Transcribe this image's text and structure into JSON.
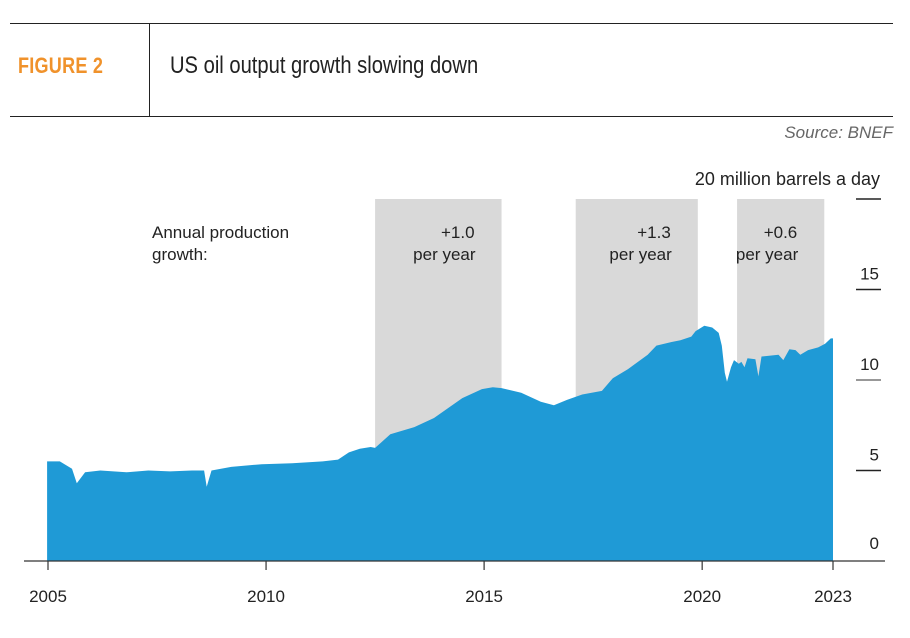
{
  "header": {
    "figure_label": "FIGURE 2",
    "title": "US oil output growth slowing down",
    "source": "Source: BNEF"
  },
  "colors": {
    "accent": "#f0922b",
    "area": "#1f9ad6",
    "band": "#d9d9d9",
    "text": "#222222"
  },
  "chart_data": {
    "type": "area",
    "title": "US oil output growth slowing down",
    "ylabel": "20 million barrels a day",
    "xlabel": "",
    "xlim": [
      2005,
      2023
    ],
    "ylim": [
      0,
      20
    ],
    "x_ticks": [
      "2005",
      "2010",
      "2015",
      "2020",
      "2023"
    ],
    "y_ticks": [
      "0",
      "5",
      "10",
      "15"
    ],
    "y_top_label": "20 million barrels a day",
    "grid": false,
    "annotation_title": "Annual production growth:",
    "bands": [
      {
        "start": 2012.5,
        "end": 2015.4,
        "line1": "+1.0",
        "line2": "per year",
        "growth": 1.0
      },
      {
        "start": 2017.1,
        "end": 2019.9,
        "line1": "+1.3",
        "line2": "per year",
        "growth": 1.3
      },
      {
        "start": 2020.8,
        "end": 2022.8,
        "line1": "+0.6",
        "line2": "per year",
        "growth": 0.6
      }
    ],
    "series": [
      {
        "name": "US oil output (million barrels a day)",
        "points": [
          [
            2004.98,
            5.5
          ],
          [
            2005.27,
            5.5
          ],
          [
            2005.55,
            5.1
          ],
          [
            2005.66,
            4.3
          ],
          [
            2005.85,
            4.9
          ],
          [
            2006.2,
            5.0
          ],
          [
            2006.8,
            4.9
          ],
          [
            2007.3,
            5.0
          ],
          [
            2007.8,
            4.95
          ],
          [
            2008.3,
            5.0
          ],
          [
            2008.58,
            5.0
          ],
          [
            2008.64,
            4.1
          ],
          [
            2008.75,
            5.0
          ],
          [
            2009.2,
            5.2
          ],
          [
            2009.9,
            5.35
          ],
          [
            2010.6,
            5.4
          ],
          [
            2011.3,
            5.5
          ],
          [
            2011.65,
            5.6
          ],
          [
            2011.9,
            6.0
          ],
          [
            2012.15,
            6.2
          ],
          [
            2012.4,
            6.3
          ],
          [
            2012.5,
            6.25
          ],
          [
            2012.85,
            7.0
          ],
          [
            2013.4,
            7.4
          ],
          [
            2013.85,
            7.9
          ],
          [
            2014.5,
            9.0
          ],
          [
            2014.95,
            9.5
          ],
          [
            2015.2,
            9.6
          ],
          [
            2015.4,
            9.55
          ],
          [
            2015.85,
            9.3
          ],
          [
            2016.3,
            8.8
          ],
          [
            2016.6,
            8.6
          ],
          [
            2016.9,
            8.9
          ],
          [
            2017.25,
            9.2
          ],
          [
            2017.7,
            9.4
          ],
          [
            2017.95,
            10.1
          ],
          [
            2018.3,
            10.6
          ],
          [
            2018.75,
            11.4
          ],
          [
            2018.95,
            11.9
          ],
          [
            2019.3,
            12.1
          ],
          [
            2019.5,
            12.2
          ],
          [
            2019.75,
            12.4
          ],
          [
            2019.85,
            12.7
          ],
          [
            2020.05,
            13.0
          ],
          [
            2020.23,
            12.9
          ],
          [
            2020.38,
            12.6
          ],
          [
            2020.45,
            11.9
          ],
          [
            2020.52,
            10.4
          ],
          [
            2020.57,
            9.9
          ],
          [
            2020.66,
            10.7
          ],
          [
            2020.73,
            11.1
          ],
          [
            2020.84,
            10.9
          ],
          [
            2020.9,
            11.0
          ],
          [
            2020.97,
            10.7
          ],
          [
            2021.04,
            11.2
          ],
          [
            2021.22,
            11.15
          ],
          [
            2021.29,
            10.2
          ],
          [
            2021.36,
            11.3
          ],
          [
            2021.75,
            11.4
          ],
          [
            2021.86,
            11.1
          ],
          [
            2022.0,
            11.7
          ],
          [
            2022.14,
            11.65
          ],
          [
            2022.25,
            11.4
          ],
          [
            2022.43,
            11.65
          ],
          [
            2022.66,
            11.8
          ],
          [
            2022.82,
            12.0
          ],
          [
            2022.95,
            12.3
          ],
          [
            2023.0,
            12.3
          ]
        ]
      }
    ]
  }
}
